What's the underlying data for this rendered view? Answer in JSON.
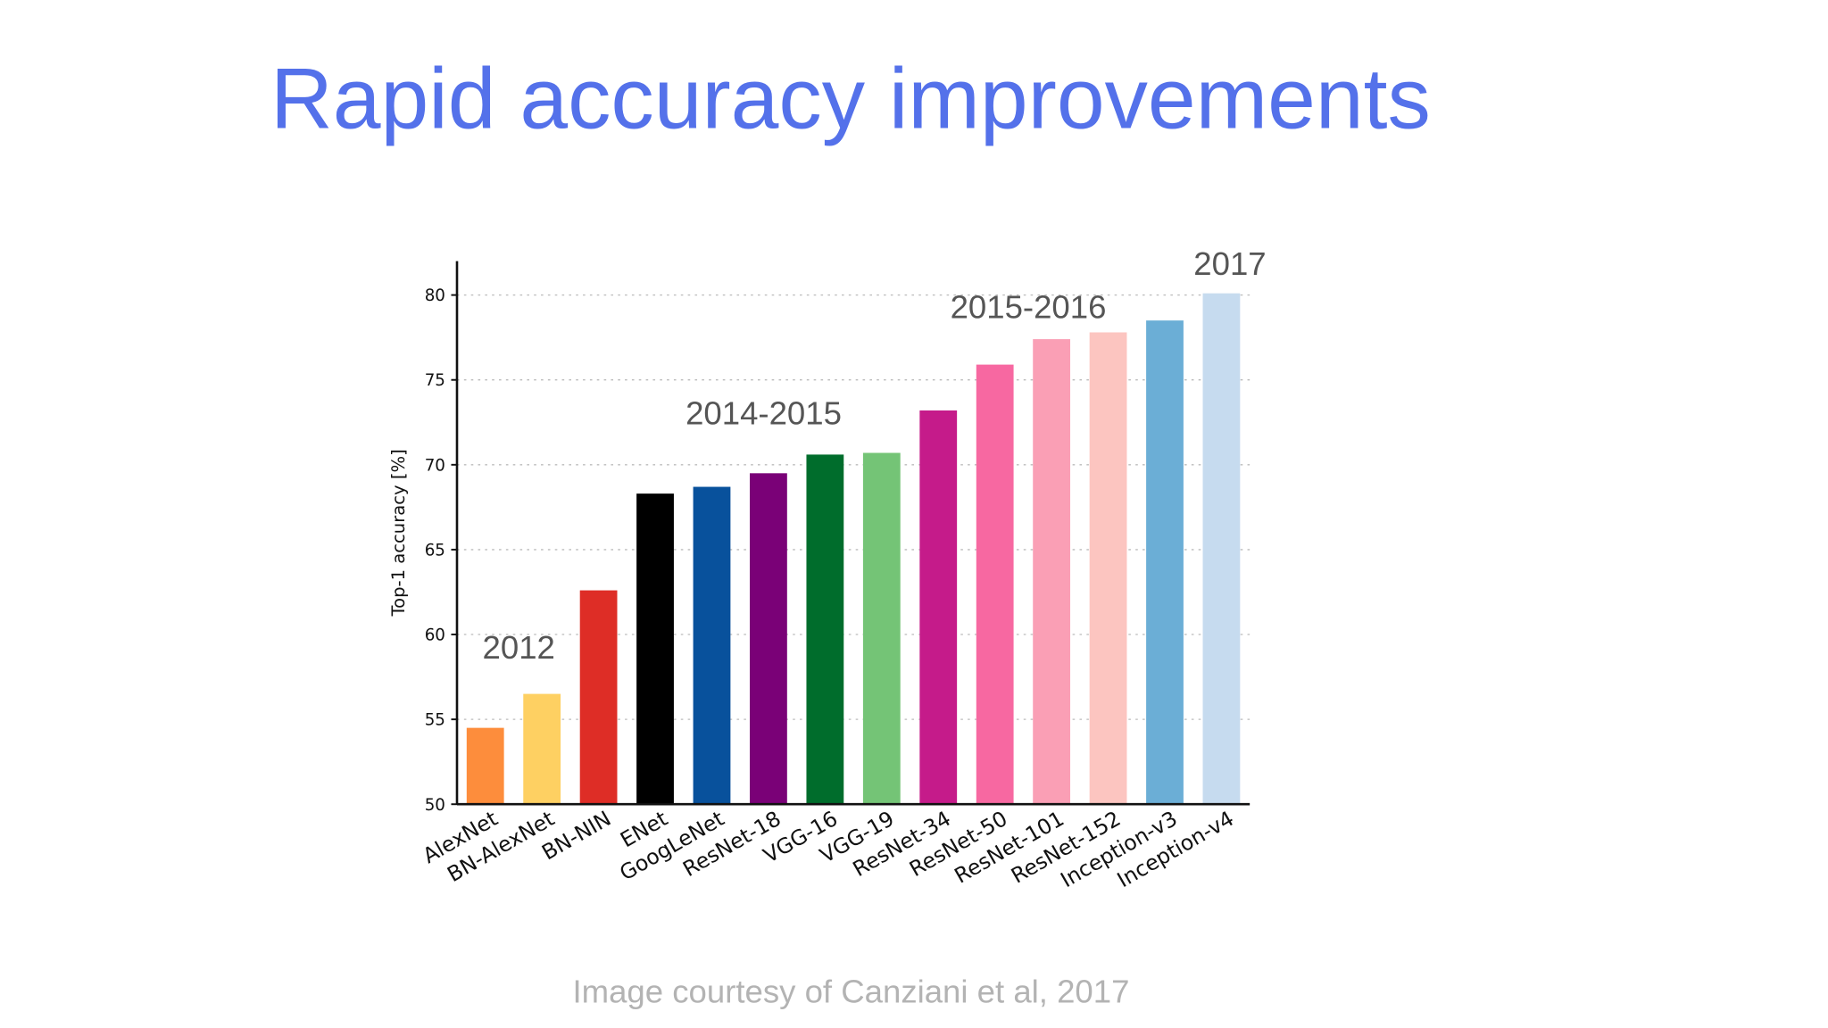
{
  "title": "Rapid accuracy improvements",
  "caption": "Image courtesy of Canziani et al, 2017",
  "chart_data": {
    "type": "bar",
    "ylabel": "Top-1 accuracy [%]",
    "categories": [
      "AlexNet",
      "BN-AlexNet",
      "BN-NIN",
      "ENet",
      "GoogLeNet",
      "ResNet-18",
      "VGG-16",
      "VGG-19",
      "ResNet-34",
      "ResNet-50",
      "ResNet-101",
      "ResNet-152",
      "Inception-v3",
      "Inception-v4"
    ],
    "values": [
      54.5,
      56.5,
      62.6,
      68.3,
      68.7,
      69.5,
      70.6,
      70.7,
      73.2,
      75.9,
      77.4,
      77.8,
      78.5,
      80.1
    ],
    "colors": [
      "#fd8d3c",
      "#fed062",
      "#de2d26",
      "#000000",
      "#08519c",
      "#7a0177",
      "#006d2c",
      "#74c476",
      "#c51b8a",
      "#f768a1",
      "#fa9fb5",
      "#fcc5c0",
      "#6baed6",
      "#c6dbef"
    ],
    "ylim": [
      50,
      82
    ],
    "yticks": [
      50,
      55,
      60,
      65,
      70,
      75,
      80
    ],
    "grid": true,
    "annotations": [
      "2012",
      "2014-2015",
      "2015-2016",
      "2017"
    ]
  }
}
